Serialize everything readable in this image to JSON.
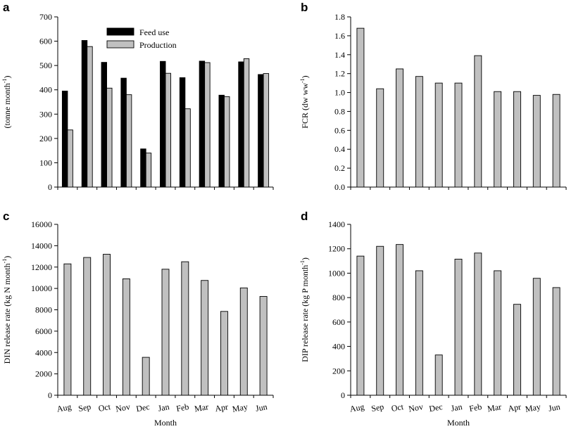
{
  "chart_data": [
    {
      "id": "a",
      "type": "bar",
      "panel_label": "a",
      "categories": [
        "Aug",
        "Sep",
        "Oct",
        "Nov",
        "Dec",
        "Jan",
        "Feb",
        "Mar",
        "Apr",
        "May",
        "Jun"
      ],
      "series": [
        {
          "name": "Feed use",
          "color": "#000000",
          "values": [
            395,
            603,
            513,
            448,
            157,
            517,
            450,
            518,
            378,
            515,
            463
          ]
        },
        {
          "name": "Production",
          "color": "#c0c0c0",
          "values": [
            235,
            578,
            407,
            380,
            140,
            468,
            322,
            512,
            372,
            528,
            467
          ]
        }
      ],
      "ylabel": "(tonne month",
      "ylabel_sup": "-1",
      "ylabel_end": ")",
      "ylim": [
        0,
        700
      ],
      "yticks": [
        0,
        100,
        200,
        300,
        400,
        500,
        600,
        700
      ],
      "show_category_labels": false,
      "legend": "top-left"
    },
    {
      "id": "b",
      "type": "bar",
      "panel_label": "b",
      "categories": [
        "Aug",
        "Sep",
        "Oct",
        "Nov",
        "Dec",
        "Jan",
        "Feb",
        "Mar",
        "Apr",
        "May",
        "Jun"
      ],
      "series": [
        {
          "name": "FCR",
          "color": "#c0c0c0",
          "values": [
            1.68,
            1.04,
            1.25,
            1.17,
            1.1,
            1.1,
            1.39,
            1.01,
            1.01,
            0.97,
            0.98
          ]
        }
      ],
      "ylabel": "FCR (dw ww",
      "ylabel_sup": "-1",
      "ylabel_end": ")",
      "ylim": [
        0,
        1.8
      ],
      "yticks": [
        "0.0",
        "0.2",
        "0.4",
        "0.6",
        "0.8",
        "1.0",
        "1.2",
        "1.4",
        "1.6",
        "1.8"
      ],
      "show_category_labels": false
    },
    {
      "id": "c",
      "type": "bar",
      "panel_label": "c",
      "categories": [
        "Aug",
        "Sep",
        "Oct",
        "Nov",
        "Dec",
        "Jan",
        "Feb",
        "Mar",
        "Apr",
        "May",
        "Jun"
      ],
      "series": [
        {
          "name": "DIN release rate",
          "color": "#c0c0c0",
          "values": [
            12300,
            12900,
            13200,
            10900,
            3550,
            11800,
            12500,
            10750,
            7850,
            10050,
            9250
          ]
        }
      ],
      "ylabel": "DIN release rate (kg N month",
      "ylabel_sup": "-1",
      "ylabel_end": ")",
      "xlabel": "Month",
      "ylim": [
        0,
        16000
      ],
      "yticks": [
        0,
        2000,
        4000,
        6000,
        8000,
        10000,
        12000,
        14000,
        16000
      ],
      "show_category_labels": true
    },
    {
      "id": "d",
      "type": "bar",
      "panel_label": "d",
      "categories": [
        "Aug",
        "Sep",
        "Oct",
        "Nov",
        "Dec",
        "Jan",
        "Feb",
        "Mar",
        "Apr",
        "May",
        "Jun"
      ],
      "series": [
        {
          "name": "DIP release rate",
          "color": "#c0c0c0",
          "values": [
            1140,
            1220,
            1235,
            1020,
            330,
            1115,
            1165,
            1020,
            745,
            958,
            882
          ]
        }
      ],
      "ylabel": "DIP release rate (kg P month",
      "ylabel_sup": "-1",
      "ylabel_end": ")",
      "xlabel": "Month",
      "ylim": [
        0,
        1400
      ],
      "yticks": [
        0,
        200,
        400,
        600,
        800,
        1000,
        1200,
        1400
      ],
      "show_category_labels": true
    }
  ]
}
